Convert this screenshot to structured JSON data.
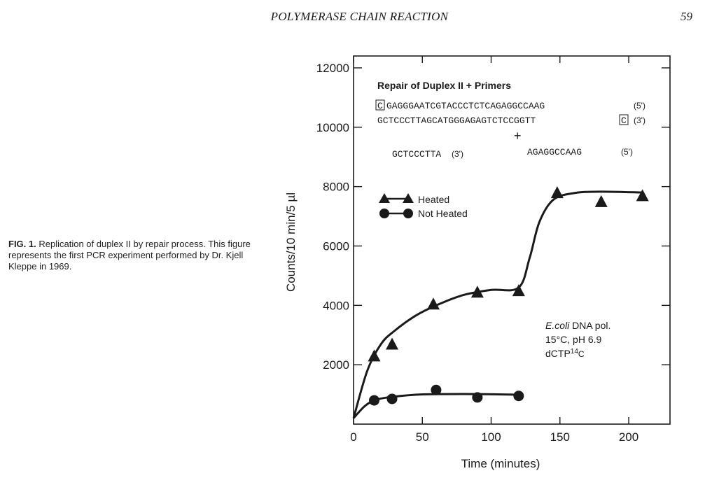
{
  "page": {
    "header_title": "POLYMERASE CHAIN REACTION",
    "page_number": "59"
  },
  "caption": {
    "label": "FIG. 1.",
    "text": "Replication of duplex II by repair process. This figure represents the first PCR experiment performed by Dr. Kjell Kleppe in 1969."
  },
  "chart_data": {
    "type": "line",
    "title": "Repair of Duplex II + Primers",
    "xlabel": "Time (minutes)",
    "ylabel": "Counts/10 min/5 µl",
    "xlim": [
      0,
      230
    ],
    "ylim": [
      0,
      12400
    ],
    "x_ticks": [
      0,
      50,
      100,
      150,
      200
    ],
    "y_ticks": [
      2000,
      4000,
      6000,
      8000,
      10000,
      12000
    ],
    "series": [
      {
        "name": "Heated",
        "marker": "triangle",
        "points": [
          [
            15,
            2300
          ],
          [
            28,
            2700
          ],
          [
            58,
            4050
          ],
          [
            90,
            4450
          ],
          [
            120,
            4500
          ],
          [
            148,
            7800
          ],
          [
            180,
            7500
          ],
          [
            210,
            7700
          ]
        ],
        "curve": [
          [
            0,
            200
          ],
          [
            10,
            1800
          ],
          [
            20,
            2700
          ],
          [
            30,
            3150
          ],
          [
            45,
            3650
          ],
          [
            60,
            4000
          ],
          [
            80,
            4350
          ],
          [
            100,
            4520
          ],
          [
            120,
            4600
          ],
          [
            128,
            5600
          ],
          [
            135,
            6800
          ],
          [
            145,
            7550
          ],
          [
            160,
            7780
          ],
          [
            180,
            7830
          ],
          [
            210,
            7800
          ]
        ]
      },
      {
        "name": "Not Heated",
        "marker": "circle",
        "points": [
          [
            15,
            800
          ],
          [
            28,
            850
          ],
          [
            60,
            1150
          ],
          [
            90,
            900
          ],
          [
            120,
            950
          ]
        ],
        "curve": [
          [
            0,
            200
          ],
          [
            8,
            600
          ],
          [
            15,
            800
          ],
          [
            25,
            900
          ],
          [
            45,
            990
          ],
          [
            60,
            1010
          ],
          [
            90,
            1010
          ],
          [
            120,
            990
          ]
        ]
      }
    ],
    "annotations": {
      "strand_top": "GAGGGAATCGTACCCTCTCAGAGGCCAAG",
      "strand_top_boxed": "C",
      "strand_top_end": "(5')",
      "strand_bottom": "GCTCCCTTAGCATGGGAGAGTCTCCGGTT",
      "strand_bottom_boxed": "C",
      "strand_bottom_end": "(3')",
      "plus": "+",
      "primer_left": "GCTCCCTTA",
      "primer_left_end": "(3')",
      "primer_right": "AGAGGCCAAG",
      "primer_right_end": "(5')",
      "condition_enzyme_italic": "E.coli",
      "condition_enzyme_rest": " DNA pol.",
      "condition_temp": "15°C, pH 6.9",
      "condition_label": "dCTP",
      "condition_label_sup": "14",
      "condition_label_tail": "C"
    }
  }
}
